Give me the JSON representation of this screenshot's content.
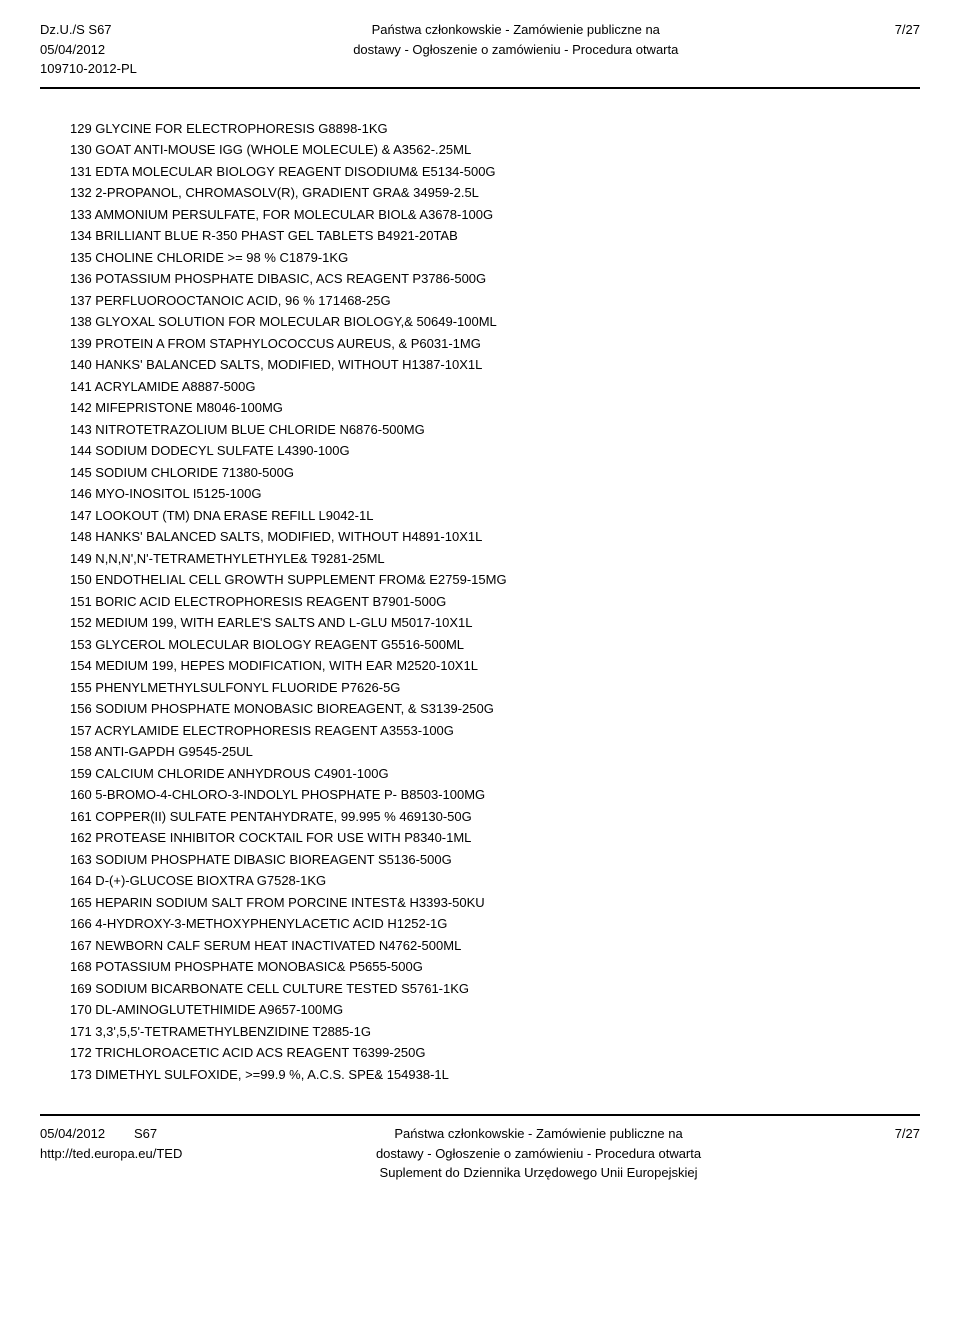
{
  "header": {
    "left_line1": "Dz.U./S S67",
    "left_line2": "05/04/2012",
    "left_line3": "109710-2012-PL",
    "center_line1": "Państwa członkowskie - Zamówienie publiczne na",
    "center_line2": "dostawy - Ogłoszenie o zamówieniu - Procedura otwarta",
    "right": "7/27"
  },
  "items": [
    "129 GLYCINE FOR ELECTROPHORESIS G8898-1KG",
    "130 GOAT ANTI-MOUSE IGG (WHOLE MOLECULE) & A3562-.25ML",
    "131 EDTA MOLECULAR BIOLOGY REAGENT DISODIUM& E5134-500G",
    "132 2-PROPANOL, CHROMASOLV(R), GRADIENT GRA& 34959-2.5L",
    "133 AMMONIUM PERSULFATE, FOR MOLECULAR BIOL& A3678-100G",
    "134 BRILLIANT BLUE R-350 PHAST GEL TABLETS B4921-20TAB",
    "135 CHOLINE CHLORIDE >= 98 % C1879-1KG",
    "136 POTASSIUM PHOSPHATE DIBASIC, ACS REAGENT P3786-500G",
    "137 PERFLUOROOCTANOIC ACID, 96 % 171468-25G",
    "138 GLYOXAL SOLUTION FOR MOLECULAR BIOLOGY,& 50649-100ML",
    "139 PROTEIN A FROM STAPHYLOCOCCUS AUREUS, & P6031-1MG",
    "140 HANKS' BALANCED SALTS, MODIFIED, WITHOUT H1387-10X1L",
    "141 ACRYLAMIDE A8887-500G",
    "142 MIFEPRISTONE M8046-100MG",
    "143 NITROTETRAZOLIUM BLUE CHLORIDE N6876-500MG",
    "144 SODIUM DODECYL SULFATE L4390-100G",
    "145 SODIUM CHLORIDE 71380-500G",
    "146 MYO-INOSITOL I5125-100G",
    "147 LOOKOUT (TM) DNA ERASE REFILL L9042-1L",
    "148 HANKS' BALANCED SALTS, MODIFIED, WITHOUT H4891-10X1L",
    "149 N,N,N',N'-TETRAMETHYLETHYLE& T9281-25ML",
    "150 ENDOTHELIAL CELL GROWTH SUPPLEMENT FROM& E2759-15MG",
    "151 BORIC ACID ELECTROPHORESIS REAGENT B7901-500G",
    "152 MEDIUM 199, WITH EARLE'S SALTS AND L-GLU M5017-10X1L",
    "153 GLYCEROL MOLECULAR BIOLOGY REAGENT G5516-500ML",
    "154 MEDIUM 199, HEPES MODIFICATION, WITH EAR M2520-10X1L",
    "155 PHENYLMETHYLSULFONYL FLUORIDE P7626-5G",
    "156 SODIUM PHOSPHATE MONOBASIC BIOREAGENT, & S3139-250G",
    "157 ACRYLAMIDE ELECTROPHORESIS REAGENT A3553-100G",
    "158 ANTI-GAPDH G9545-25UL",
    "159 CALCIUM CHLORIDE ANHYDROUS C4901-100G",
    "160 5-BROMO-4-CHLORO-3-INDOLYL PHOSPHATE P- B8503-100MG",
    "161 COPPER(II) SULFATE PENTAHYDRATE, 99.995 % 469130-50G",
    "162 PROTEASE INHIBITOR COCKTAIL FOR USE WITH P8340-1ML",
    "163 SODIUM PHOSPHATE DIBASIC BIOREAGENT S5136-500G",
    "164 D-(+)-GLUCOSE BIOXTRA G7528-1KG",
    "165 HEPARIN SODIUM SALT FROM PORCINE INTEST& H3393-50KU",
    "166 4-HYDROXY-3-METHOXYPHENYLACETIC ACID H1252-1G",
    "167 NEWBORN CALF SERUM HEAT INACTIVATED N4762-500ML",
    "168 POTASSIUM PHOSPHATE MONOBASIC& P5655-500G",
    "169 SODIUM BICARBONATE CELL CULTURE TESTED S5761-1KG",
    "170 DL-AMINOGLUTETHIMIDE A9657-100MG",
    "171 3,3',5,5'-TETRAMETHYLBENZIDINE T2885-1G",
    "172 TRICHLOROACETIC ACID ACS REAGENT T6399-250G",
    "173 DIMETHYL SULFOXIDE, >=99.9 %, A.C.S. SPE& 154938-1L"
  ],
  "footer": {
    "left_line1": "05/04/2012",
    "left_line2": "http://ted.europa.eu/TED",
    "left_right": "S67",
    "center_line1": "Państwa członkowskie - Zamówienie publiczne na",
    "center_line2": "dostawy - Ogłoszenie o zamówieniu - Procedura otwarta",
    "center_line3": "Suplement do Dziennika Urzędowego Unii Europejskiej",
    "right": "7/27"
  }
}
